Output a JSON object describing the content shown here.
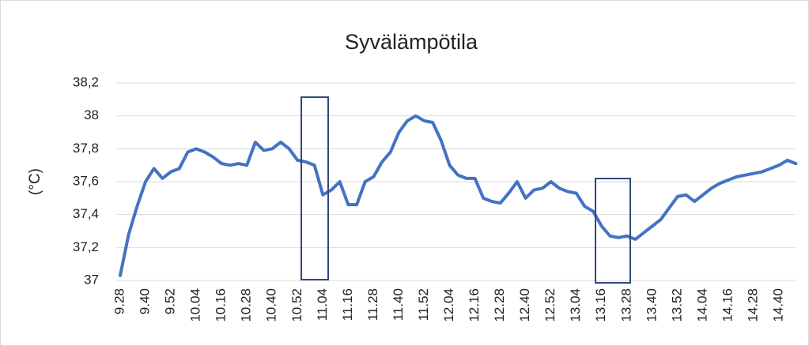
{
  "chart_data": {
    "type": "line",
    "title": "Syvälämpötila",
    "y_label": "(°C)",
    "color": "#4472c4",
    "categories": [
      "9.28",
      null,
      null,
      "9.40",
      null,
      null,
      "9.52",
      null,
      null,
      "10.04",
      null,
      null,
      "10.16",
      null,
      null,
      "10.28",
      null,
      null,
      "10.40",
      null,
      null,
      "10.52",
      null,
      null,
      "11.04",
      null,
      null,
      "11.16",
      null,
      null,
      "11.28",
      null,
      null,
      "11.40",
      null,
      null,
      "11.52",
      null,
      null,
      "12.04",
      null,
      null,
      "12.16",
      null,
      null,
      "12.28",
      null,
      null,
      "12.40",
      null,
      null,
      "12.52",
      null,
      null,
      "13.04",
      null,
      null,
      "13.16",
      null,
      null,
      "13.28",
      null,
      null,
      "13.40",
      null,
      null,
      "13.52",
      null,
      null,
      "14.04",
      null,
      null,
      "14.16",
      null,
      null,
      "14.28",
      null,
      null,
      "14.40",
      null,
      null
    ],
    "values": [
      37.03,
      37.28,
      37.45,
      37.6,
      37.68,
      37.62,
      37.66,
      37.68,
      37.78,
      37.8,
      37.78,
      37.75,
      37.71,
      37.7,
      37.71,
      37.7,
      37.84,
      37.79,
      37.8,
      37.84,
      37.8,
      37.73,
      37.72,
      37.7,
      37.52,
      37.55,
      37.6,
      37.46,
      37.46,
      37.6,
      37.63,
      37.72,
      37.78,
      37.9,
      37.97,
      38.0,
      37.97,
      37.96,
      37.85,
      37.7,
      37.64,
      37.62,
      37.62,
      37.5,
      37.48,
      37.47,
      37.53,
      37.6,
      37.5,
      37.55,
      37.56,
      37.6,
      37.56,
      37.54,
      37.53,
      37.45,
      37.42,
      37.33,
      37.27,
      37.26,
      37.27,
      37.25,
      37.29,
      37.33,
      37.37,
      37.44,
      37.51,
      37.52,
      37.48,
      37.52,
      37.56,
      37.59,
      37.61,
      37.63,
      37.64,
      37.65,
      37.66,
      37.68,
      37.7,
      37.73,
      37.71
    ],
    "ylim": [
      37,
      38.2
    ],
    "yticks": [
      37,
      {
        "value": 37.2,
        "label": "37,2"
      },
      {
        "value": 37.4,
        "label": "37,4"
      },
      {
        "value": 37.6,
        "label": "37,6"
      },
      {
        "value": 37.8,
        "label": "37,8"
      },
      38,
      {
        "value": 38.2,
        "label": "38,2"
      }
    ],
    "grid": true
  }
}
